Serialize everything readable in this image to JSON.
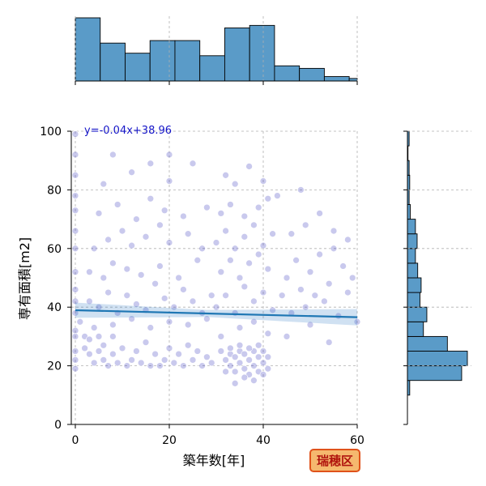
{
  "chart_data": {
    "type": "scatter",
    "xlabel": "築年数[年]",
    "ylabel": "専有面積[m2]",
    "xlim": [
      0,
      60
    ],
    "ylim": [
      0,
      100
    ],
    "xticks": [
      0,
      20,
      40,
      60
    ],
    "yticks": [
      0,
      20,
      40,
      60,
      80,
      100
    ],
    "grid": true,
    "regression": {
      "slope": -0.04,
      "intercept": 38.96,
      "label": "y=-0.04x+38.96"
    },
    "badge": "瑞穂区",
    "x_histogram": {
      "bin_edges": [
        0,
        5.3,
        10.6,
        15.9,
        21.2,
        26.5,
        31.8,
        37.1,
        42.4,
        47.7,
        53,
        58.3,
        60
      ],
      "counts": [
        100,
        60,
        44,
        64,
        64,
        40,
        84,
        88,
        24,
        20,
        7,
        4
      ]
    },
    "y_histogram": {
      "bin_edges": [
        10,
        15,
        20,
        25,
        30,
        35,
        40,
        45,
        50,
        55,
        60,
        65,
        70,
        75,
        80,
        85,
        90,
        95,
        100
      ],
      "counts": [
        4,
        95,
        105,
        70,
        28,
        34,
        22,
        24,
        18,
        14,
        17,
        14,
        5,
        3,
        4,
        3,
        1,
        3
      ]
    },
    "scatter_points": [
      [
        0,
        99
      ],
      [
        0,
        92
      ],
      [
        0,
        85
      ],
      [
        0,
        78
      ],
      [
        0,
        73
      ],
      [
        0,
        66
      ],
      [
        0,
        60
      ],
      [
        0,
        52
      ],
      [
        0,
        46
      ],
      [
        0,
        42
      ],
      [
        0,
        38
      ],
      [
        0,
        32
      ],
      [
        0,
        30
      ],
      [
        0,
        25
      ],
      [
        0,
        22
      ],
      [
        0,
        19
      ],
      [
        2,
        30
      ],
      [
        2,
        26
      ],
      [
        3,
        24
      ],
      [
        3,
        29
      ],
      [
        4,
        21
      ],
      [
        5,
        25
      ],
      [
        5,
        30
      ],
      [
        6,
        22
      ],
      [
        6,
        27
      ],
      [
        7,
        20
      ],
      [
        8,
        24
      ],
      [
        8,
        30
      ],
      [
        9,
        21
      ],
      [
        10,
        26
      ],
      [
        11,
        20
      ],
      [
        12,
        22
      ],
      [
        13,
        25
      ],
      [
        14,
        21
      ],
      [
        15,
        28
      ],
      [
        16,
        20
      ],
      [
        17,
        24
      ],
      [
        18,
        20
      ],
      [
        19,
        22
      ],
      [
        20,
        26
      ],
      [
        21,
        21
      ],
      [
        22,
        24
      ],
      [
        23,
        20
      ],
      [
        24,
        27
      ],
      [
        25,
        22
      ],
      [
        26,
        25
      ],
      [
        27,
        20
      ],
      [
        28,
        23
      ],
      [
        29,
        21
      ],
      [
        3,
        42
      ],
      [
        5,
        40
      ],
      [
        7,
        45
      ],
      [
        9,
        38
      ],
      [
        11,
        44
      ],
      [
        13,
        41
      ],
      [
        15,
        39
      ],
      [
        17,
        48
      ],
      [
        19,
        43
      ],
      [
        21,
        40
      ],
      [
        23,
        46
      ],
      [
        25,
        42
      ],
      [
        27,
        38
      ],
      [
        29,
        44
      ],
      [
        3,
        52
      ],
      [
        6,
        50
      ],
      [
        8,
        55
      ],
      [
        11,
        53
      ],
      [
        14,
        51
      ],
      [
        18,
        54
      ],
      [
        22,
        50
      ],
      [
        26,
        56
      ],
      [
        4,
        60
      ],
      [
        7,
        63
      ],
      [
        10,
        66
      ],
      [
        12,
        61
      ],
      [
        15,
        64
      ],
      [
        18,
        68
      ],
      [
        20,
        62
      ],
      [
        24,
        65
      ],
      [
        27,
        60
      ],
      [
        5,
        72
      ],
      [
        9,
        75
      ],
      [
        13,
        70
      ],
      [
        16,
        77
      ],
      [
        19,
        73
      ],
      [
        23,
        71
      ],
      [
        28,
        74
      ],
      [
        6,
        82
      ],
      [
        12,
        86
      ],
      [
        16,
        89
      ],
      [
        20,
        83
      ],
      [
        25,
        89
      ],
      [
        8,
        92
      ],
      [
        20,
        92
      ],
      [
        1,
        35
      ],
      [
        4,
        33
      ],
      [
        8,
        34
      ],
      [
        12,
        36
      ],
      [
        16,
        33
      ],
      [
        20,
        35
      ],
      [
        24,
        34
      ],
      [
        28,
        36
      ],
      [
        31,
        25
      ],
      [
        32,
        22
      ],
      [
        33,
        24
      ],
      [
        33,
        20
      ],
      [
        34,
        23
      ],
      [
        34,
        18
      ],
      [
        35,
        25
      ],
      [
        35,
        21
      ],
      [
        36,
        19
      ],
      [
        36,
        24
      ],
      [
        37,
        22
      ],
      [
        37,
        17
      ],
      [
        38,
        25
      ],
      [
        38,
        20
      ],
      [
        39,
        23
      ],
      [
        39,
        18
      ],
      [
        40,
        21
      ],
      [
        40,
        25
      ],
      [
        41,
        19
      ],
      [
        41,
        23
      ],
      [
        32,
        18
      ],
      [
        34,
        14
      ],
      [
        36,
        16
      ],
      [
        38,
        15
      ],
      [
        40,
        17
      ],
      [
        33,
        26
      ],
      [
        35,
        27
      ],
      [
        37,
        26
      ],
      [
        39,
        27
      ],
      [
        30,
        40
      ],
      [
        32,
        44
      ],
      [
        34,
        38
      ],
      [
        36,
        47
      ],
      [
        38,
        42
      ],
      [
        40,
        45
      ],
      [
        42,
        39
      ],
      [
        31,
        52
      ],
      [
        33,
        56
      ],
      [
        35,
        50
      ],
      [
        37,
        55
      ],
      [
        39,
        58
      ],
      [
        41,
        53
      ],
      [
        30,
        62
      ],
      [
        32,
        66
      ],
      [
        34,
        60
      ],
      [
        36,
        64
      ],
      [
        38,
        68
      ],
      [
        40,
        61
      ],
      [
        42,
        65
      ],
      [
        31,
        72
      ],
      [
        33,
        75
      ],
      [
        36,
        71
      ],
      [
        39,
        74
      ],
      [
        41,
        77
      ],
      [
        34,
        82
      ],
      [
        37,
        88
      ],
      [
        40,
        83
      ],
      [
        32,
        85
      ],
      [
        35,
        33
      ],
      [
        38,
        35
      ],
      [
        41,
        31
      ],
      [
        31,
        30
      ],
      [
        44,
        44
      ],
      [
        45,
        50
      ],
      [
        46,
        38
      ],
      [
        47,
        56
      ],
      [
        48,
        46
      ],
      [
        49,
        40
      ],
      [
        50,
        52
      ],
      [
        51,
        44
      ],
      [
        52,
        58
      ],
      [
        53,
        42
      ],
      [
        54,
        48
      ],
      [
        55,
        60
      ],
      [
        56,
        37
      ],
      [
        57,
        54
      ],
      [
        58,
        45
      ],
      [
        59,
        50
      ],
      [
        46,
        65
      ],
      [
        49,
        68
      ],
      [
        52,
        72
      ],
      [
        55,
        66
      ],
      [
        58,
        63
      ],
      [
        45,
        30
      ],
      [
        50,
        34
      ],
      [
        54,
        28
      ],
      [
        60,
        35
      ],
      [
        43,
        78
      ],
      [
        48,
        80
      ]
    ]
  }
}
